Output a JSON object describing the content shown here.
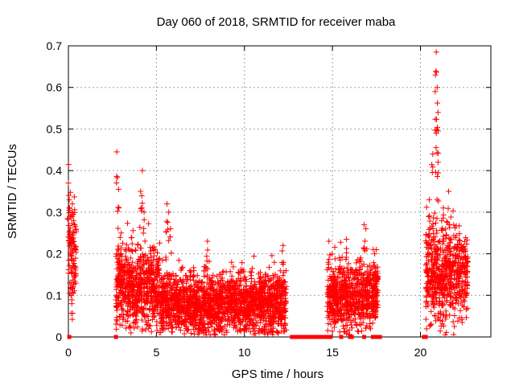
{
  "chart_data": {
    "type": "scatter",
    "title": "Day 060 of 2018, SRMTID for receiver maba",
    "xlabel": "GPS time / hours",
    "ylabel": "SRMTID / TECUs",
    "xlim": [
      0,
      24
    ],
    "ylim": [
      0,
      0.7
    ],
    "xticks": [
      0,
      5,
      10,
      15,
      20
    ],
    "yticks": [
      0,
      0.1,
      0.2,
      0.3,
      0.4,
      0.5,
      0.6,
      0.7
    ],
    "grid": true,
    "series_color": "#ff0000",
    "marker": "+",
    "zero_value_markers": "filled-square",
    "data_segments": [
      {
        "t_start": 0.0,
        "t_end": 0.45,
        "mean": 0.2,
        "spread": 0.08,
        "peaks": [
          [
            0.0,
            0.37
          ],
          [
            0.05,
            0.33
          ],
          [
            0.3,
            0.28
          ]
        ]
      },
      {
        "t_start": 2.7,
        "t_end": 5.2,
        "mean": 0.12,
        "spread": 0.06,
        "peaks": [
          [
            2.75,
            0.445
          ],
          [
            2.85,
            0.355
          ],
          [
            3.0,
            0.25
          ],
          [
            4.2,
            0.4
          ],
          [
            4.1,
            0.35
          ],
          [
            4.3,
            0.3
          ]
        ]
      },
      {
        "t_start": 5.2,
        "t_end": 12.4,
        "mean": 0.08,
        "spread": 0.045,
        "peaks": [
          [
            5.6,
            0.32
          ],
          [
            5.7,
            0.3
          ],
          [
            7.9,
            0.23
          ],
          [
            12.2,
            0.22
          ],
          [
            5.8,
            0.26
          ]
        ]
      },
      {
        "t_start": 14.7,
        "t_end": 17.6,
        "mean": 0.1,
        "spread": 0.05,
        "peaks": [
          [
            14.8,
            0.23
          ],
          [
            15.8,
            0.235
          ],
          [
            16.8,
            0.27
          ],
          [
            16.9,
            0.26
          ],
          [
            17.4,
            0.2
          ]
        ]
      },
      {
        "t_start": 20.3,
        "t_end": 22.7,
        "mean": 0.15,
        "spread": 0.07,
        "peaks": [
          [
            20.9,
            0.685
          ],
          [
            20.85,
            0.63
          ],
          [
            20.95,
            0.6
          ],
          [
            21.0,
            0.54
          ],
          [
            20.9,
            0.49
          ],
          [
            20.7,
            0.44
          ],
          [
            21.0,
            0.42
          ],
          [
            20.5,
            0.33
          ],
          [
            21.6,
            0.35
          ],
          [
            21.3,
            0.31
          ]
        ]
      }
    ],
    "zero_markers_t": [
      0.05,
      2.7,
      12.7,
      12.8,
      12.9,
      13.0,
      13.1,
      13.2,
      13.3,
      13.4,
      13.6,
      13.7,
      13.8,
      13.9,
      14.0,
      14.1,
      14.2,
      14.3,
      14.4,
      14.6,
      14.8,
      14.9,
      15.5,
      16.0,
      16.1,
      16.8,
      17.3,
      17.4,
      17.6,
      17.7,
      20.2,
      20.3
    ]
  }
}
